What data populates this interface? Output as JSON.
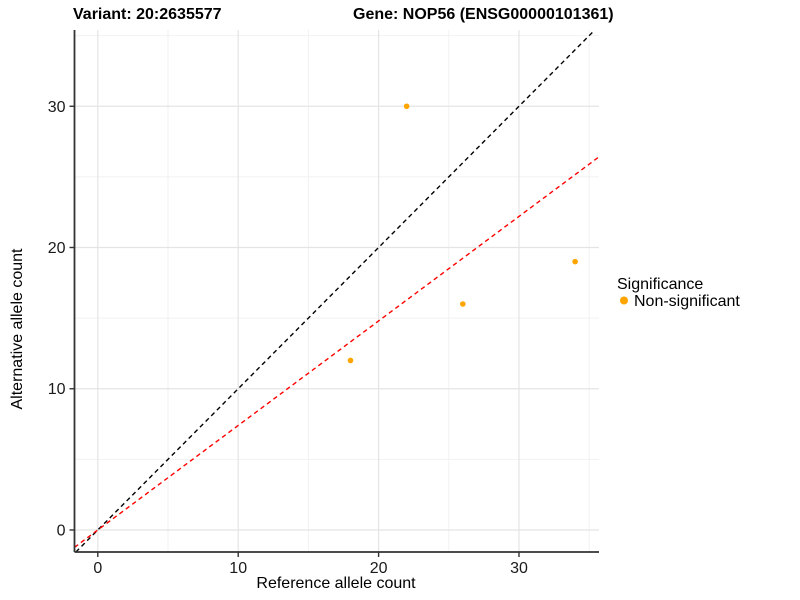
{
  "chart_data": {
    "type": "scatter",
    "title_variant": "Variant: 20:2635577",
    "title_gene": "Gene: NOP56 (ENSG00000101361)",
    "xlabel": "Reference allele count",
    "ylabel": "Alternative allele count",
    "x_ticks": [
      0,
      10,
      20,
      30
    ],
    "y_ticks": [
      0,
      10,
      20,
      30
    ],
    "x_minor_ticks": [
      5,
      15,
      25,
      35
    ],
    "y_minor_ticks": [
      5,
      15,
      25,
      35
    ],
    "xlim": [
      -1.66,
      35.7
    ],
    "ylim": [
      -1.56,
      35.4
    ],
    "points": [
      {
        "x": 18,
        "y": 12,
        "significance": "Non-significant"
      },
      {
        "x": 22,
        "y": 30,
        "significance": "Non-significant"
      },
      {
        "x": 26,
        "y": 16,
        "significance": "Non-significant"
      },
      {
        "x": 34,
        "y": 19,
        "significance": "Non-significant"
      }
    ],
    "lines": [
      {
        "name": "identity-line",
        "slope": 1,
        "intercept": 0,
        "color": "#000000",
        "style": "dashed"
      },
      {
        "name": "fitted-ratio-line",
        "slope": 0.74,
        "intercept": 0,
        "color": "#FF0000",
        "style": "dashed"
      }
    ],
    "legend": {
      "title": "Significance",
      "items": [
        {
          "label": "Non-significant",
          "color": "#FFA500"
        }
      ]
    },
    "colors": {
      "point": "#FFA500",
      "grid_major": "#E4E4E4",
      "grid_minor": "#F0F0F0",
      "axis": "#333333",
      "background": "#FFFFFF"
    },
    "grid": "on",
    "legend_position": "right"
  }
}
